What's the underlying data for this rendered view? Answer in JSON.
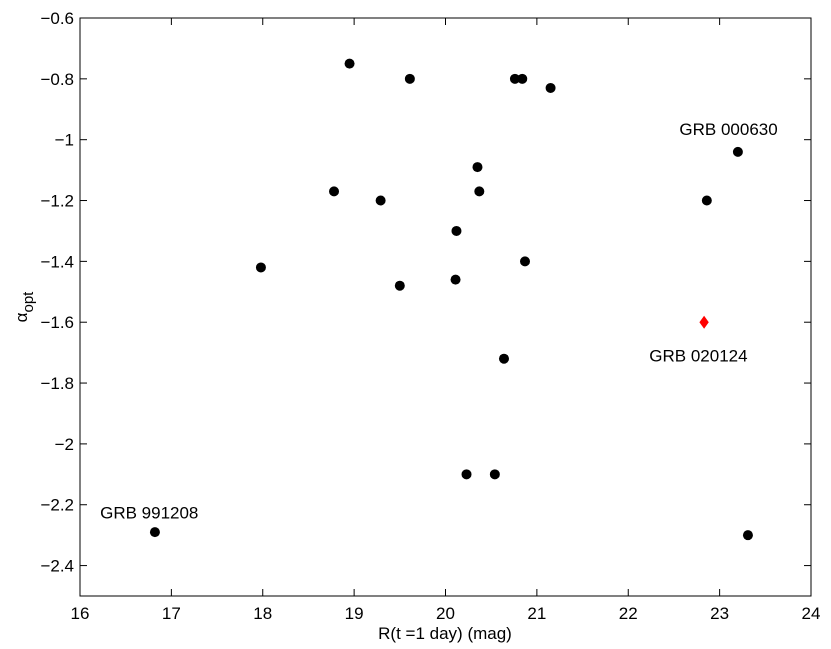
{
  "chart_data": {
    "type": "scatter",
    "title": "",
    "xlabel": "R(t =1 day)  (mag)",
    "ylabel": "α",
    "ylabel_sub": "opt",
    "xlim": [
      16,
      24
    ],
    "ylim": [
      -2.5,
      -0.6
    ],
    "xticks": [
      16,
      17,
      18,
      19,
      20,
      21,
      22,
      23,
      24
    ],
    "yticks": [
      -2.4,
      -2.2,
      -2,
      -1.8,
      -1.6,
      -1.4,
      -1.2,
      -1,
      -0.8,
      -0.6
    ],
    "ytick_labels": [
      "−2.4",
      "−2.2",
      "−2",
      "−1.8",
      "−1.6",
      "−1.4",
      "−1.2",
      "−1",
      "−0.8",
      "−0.6"
    ],
    "grid": false,
    "series": [
      {
        "marker": "circle",
        "color": "#000000",
        "points": [
          {
            "x": 16.82,
            "y": -2.29
          },
          {
            "x": 17.98,
            "y": -1.42
          },
          {
            "x": 18.78,
            "y": -1.17
          },
          {
            "x": 18.95,
            "y": -0.75
          },
          {
            "x": 19.29,
            "y": -1.2
          },
          {
            "x": 19.5,
            "y": -1.48
          },
          {
            "x": 19.61,
            "y": -0.8
          },
          {
            "x": 20.11,
            "y": -1.46
          },
          {
            "x": 20.12,
            "y": -1.3
          },
          {
            "x": 20.23,
            "y": -2.1
          },
          {
            "x": 20.35,
            "y": -1.09
          },
          {
            "x": 20.37,
            "y": -1.17
          },
          {
            "x": 20.54,
            "y": -2.1
          },
          {
            "x": 20.64,
            "y": -1.72
          },
          {
            "x": 20.76,
            "y": -0.8
          },
          {
            "x": 20.84,
            "y": -0.8
          },
          {
            "x": 20.87,
            "y": -1.4
          },
          {
            "x": 21.15,
            "y": -0.83
          },
          {
            "x": 22.86,
            "y": -1.2
          },
          {
            "x": 23.2,
            "y": -1.04
          },
          {
            "x": 23.31,
            "y": -2.3
          }
        ]
      },
      {
        "marker": "diamond",
        "color": "#ff0000",
        "points": [
          {
            "x": 22.83,
            "y": -1.6
          }
        ]
      }
    ],
    "annotations": [
      {
        "text": "GRB 000630",
        "x": 22.56,
        "y": -0.965
      },
      {
        "text": "GRB 020124",
        "x": 22.23,
        "y": -1.71
      },
      {
        "text": "GRB 991208",
        "x": 16.22,
        "y": -2.225
      }
    ]
  }
}
